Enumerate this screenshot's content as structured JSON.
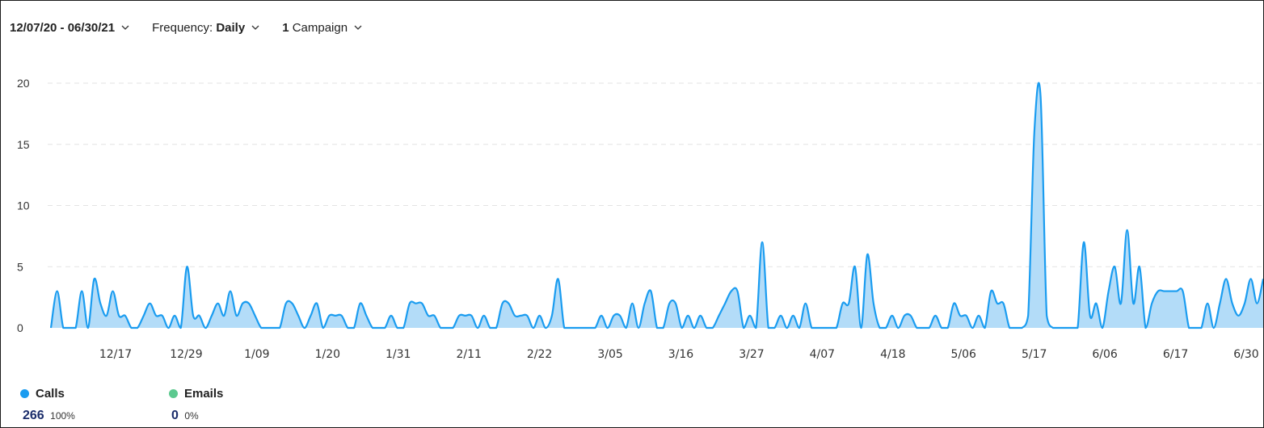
{
  "filters": {
    "date_range": "12/07/20 - 06/30/21",
    "frequency_label": "Frequency:",
    "frequency_value": "Daily",
    "campaign_count": "1",
    "campaign_label": "Campaign"
  },
  "colors": {
    "calls": "#1a9cf0",
    "calls_fill": "#b3dcf8",
    "emails": "#5cc98f",
    "grid": "#e3e3e3"
  },
  "legend": {
    "calls": {
      "label": "Calls",
      "value": "266",
      "percent": "100%"
    },
    "emails": {
      "label": "Emails",
      "value": "0",
      "percent": "0%"
    }
  },
  "chart_data": {
    "type": "area",
    "title": "",
    "xlabel": "",
    "ylabel": "",
    "ylim": [
      0,
      21
    ],
    "y_ticks": [
      0,
      5,
      10,
      15,
      20
    ],
    "x_tick_labels": [
      "12/17",
      "12/29",
      "1/09",
      "1/20",
      "1/31",
      "2/11",
      "2/22",
      "3/05",
      "3/16",
      "3/27",
      "4/07",
      "4/18",
      "5/06",
      "5/17",
      "6/06",
      "6/17",
      "6/30"
    ],
    "grid": "horizontal dashed",
    "series": [
      {
        "name": "Calls",
        "values": [
          0,
          3,
          0,
          0,
          0,
          3,
          0,
          4,
          2,
          1,
          3,
          1,
          1,
          0,
          0,
          1,
          2,
          1,
          1,
          0,
          1,
          0,
          5,
          1,
          1,
          0,
          1,
          2,
          1,
          3,
          1,
          2,
          2,
          1,
          0,
          0,
          0,
          0,
          2,
          2,
          1,
          0,
          1,
          2,
          0,
          1,
          1,
          1,
          0,
          0,
          2,
          1,
          0,
          0,
          0,
          1,
          0,
          0,
          2,
          2,
          2,
          1,
          1,
          0,
          0,
          0,
          1,
          1,
          1,
          0,
          1,
          0,
          0,
          2,
          2,
          1,
          1,
          1,
          0,
          1,
          0,
          1,
          4,
          0,
          0,
          0,
          0,
          0,
          0,
          1,
          0,
          1,
          1,
          0,
          2,
          0,
          2,
          3,
          0,
          0,
          2,
          2,
          0,
          1,
          0,
          1,
          0,
          0,
          1,
          2,
          3,
          3,
          0,
          1,
          0,
          7,
          0,
          0,
          1,
          0,
          1,
          0,
          2,
          0,
          0,
          0,
          0,
          0,
          2,
          2,
          5,
          0,
          6,
          2,
          0,
          0,
          1,
          0,
          1,
          1,
          0,
          0,
          0,
          1,
          0,
          0,
          2,
          1,
          1,
          0,
          1,
          0,
          3,
          2,
          2,
          0,
          0,
          0,
          1,
          16,
          19,
          1,
          0,
          0,
          0,
          0,
          0,
          7,
          1,
          2,
          0,
          3,
          5,
          2,
          8,
          2,
          5,
          0,
          2,
          3,
          3,
          3,
          3,
          3,
          0,
          0,
          0,
          2,
          0,
          2,
          4,
          2,
          1,
          2,
          4,
          2,
          4
        ]
      }
    ]
  }
}
